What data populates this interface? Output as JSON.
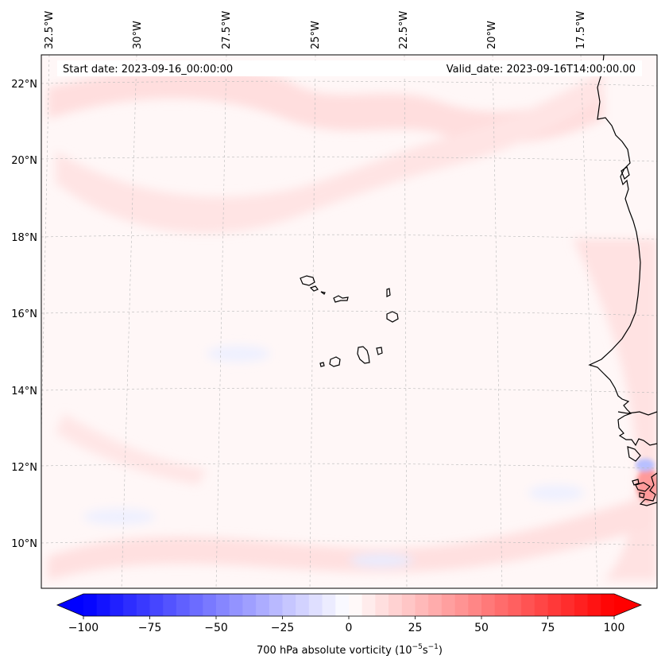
{
  "map": {
    "header": {
      "start_date": "Start date: 2023-09-16_00:00:00",
      "valid_date": "Valid_date: 2023-09-16T14:00:00.00"
    },
    "longitude_labels": [
      "32.5°W",
      "30°W",
      "27.5°W",
      "25°W",
      "22.5°W",
      "20°W",
      "17.5°W"
    ],
    "latitude_labels": [
      "22°N",
      "20°N",
      "18°N",
      "16°N",
      "14°N",
      "12°N",
      "10°N"
    ],
    "gridlines": true,
    "coastline_color": "#000000",
    "field_color_scale": {
      "negative": "#0000ff",
      "zero": "#ffffff",
      "positive": "#ff0000"
    }
  },
  "colorbar": {
    "label_main": "700 hPa absolute vorticity (10",
    "label_exp1": "−5",
    "label_mid": "s",
    "label_exp2": "−1",
    "label_close": ")",
    "tick_labels": [
      "−100",
      "−75",
      "−50",
      "−25",
      "0",
      "25",
      "50",
      "75",
      "100"
    ],
    "range": [
      -100,
      100
    ],
    "extend": "both"
  }
}
